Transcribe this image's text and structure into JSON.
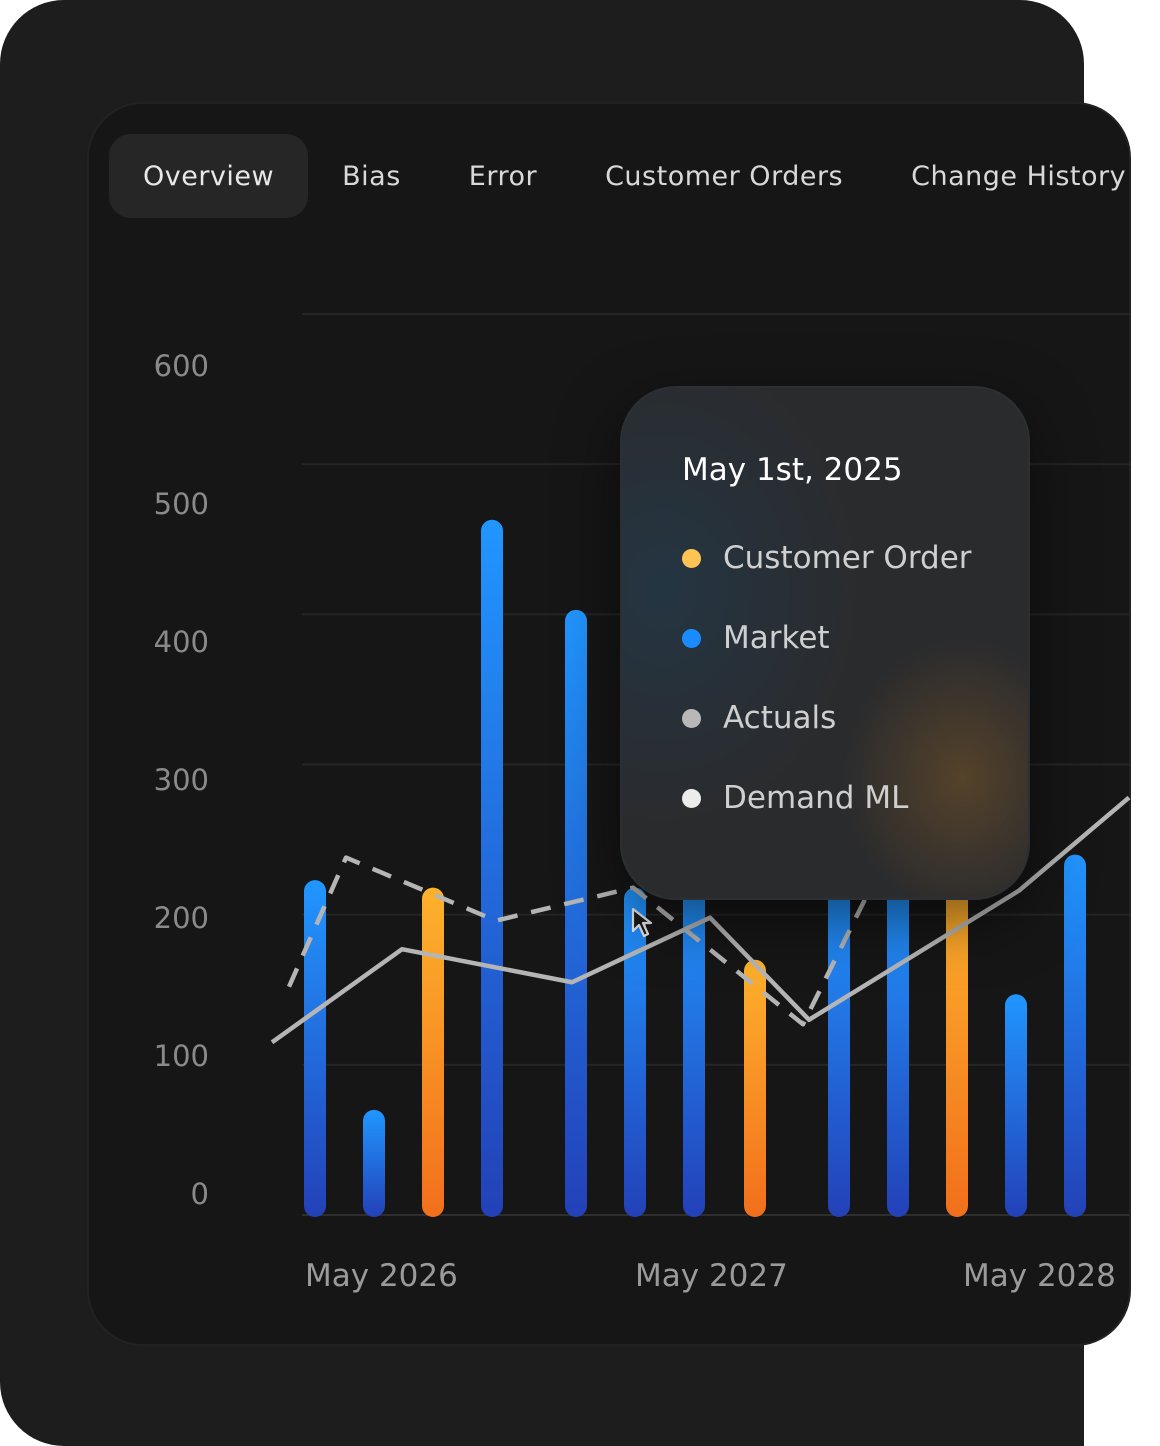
{
  "tabs": [
    {
      "label": "Overview",
      "active": true
    },
    {
      "label": "Bias",
      "active": false
    },
    {
      "label": "Error",
      "active": false
    },
    {
      "label": "Customer Orders",
      "active": false
    },
    {
      "label": "Change History",
      "active": false
    }
  ],
  "tooltip": {
    "date": "May 1st, 2025",
    "items": [
      {
        "label": "Customer Order",
        "color": "#fdc453"
      },
      {
        "label": "Market",
        "color": "#1a8cff"
      },
      {
        "label": "Actuals",
        "color": "#b8b8b8"
      },
      {
        "label": "Demand ML",
        "color": "#ececec"
      }
    ]
  },
  "chart_data": {
    "type": "bar",
    "y_ticks": [
      "600",
      "500",
      "400",
      "300",
      "200",
      "100",
      "0"
    ],
    "ylim": [
      0,
      600
    ],
    "x_labels": [
      "May 2026",
      "May 2027",
      "May 2028"
    ],
    "colors": {
      "market": "#1a8cff",
      "customer_order": "#f5a623",
      "actuals": "#b8b8b8",
      "demand_ml": "#b8b8b8"
    },
    "bars": [
      {
        "series": "Market",
        "value": 223
      },
      {
        "series": "Market",
        "value": 70
      },
      {
        "series": "Customer Order",
        "value": 218
      },
      {
        "series": "Market",
        "value": 463
      },
      {
        "series": "Market",
        "value": 403
      },
      {
        "series": "Market",
        "value": 218
      },
      {
        "series": "Market",
        "value": 220
      },
      {
        "series": "Customer Order",
        "value": 170
      },
      {
        "series": "Market",
        "value": 220
      },
      {
        "series": "Market",
        "value": 220
      },
      {
        "series": "Customer Order",
        "value": 220
      },
      {
        "series": "Market",
        "value": 147
      },
      {
        "series": "Market",
        "value": 240
      }
    ],
    "actuals": [
      [
        0,
        115
      ],
      [
        1,
        177
      ],
      [
        2,
        165
      ],
      [
        3,
        155
      ],
      [
        4,
        198
      ],
      [
        5,
        138
      ],
      [
        6,
        168
      ],
      [
        7,
        198
      ],
      [
        8,
        230
      ],
      [
        9,
        270
      ]
    ],
    "demand_ml": [
      [
        0,
        150
      ],
      [
        1,
        238
      ],
      [
        2,
        198
      ],
      [
        3,
        218
      ],
      [
        4,
        170
      ],
      [
        5,
        130
      ],
      [
        6,
        235
      ]
    ]
  }
}
